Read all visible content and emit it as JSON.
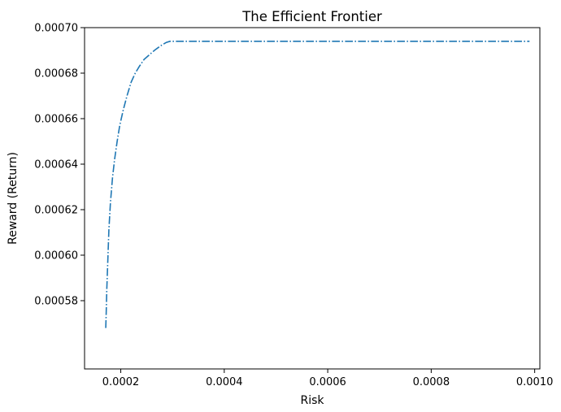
{
  "chart_data": {
    "type": "line",
    "title": "The Efficient Frontier",
    "xlabel": "Risk",
    "ylabel": "Reward (Return)",
    "xlim": [
      0.00013,
      0.00101
    ],
    "ylim": [
      0.00055,
      0.0007
    ],
    "x_ticks": [
      0.0002,
      0.0004,
      0.0006,
      0.0008,
      0.001
    ],
    "x_tick_labels": [
      "0.0002",
      "0.0004",
      "0.0006",
      "0.0008",
      "0.0010"
    ],
    "y_ticks": [
      0.00058,
      0.0006,
      0.00062,
      0.00064,
      0.00066,
      0.00068,
      0.0007
    ],
    "y_tick_labels": [
      "0.00058",
      "0.00060",
      "0.00062",
      "0.00064",
      "0.00066",
      "0.00068",
      "0.00070"
    ],
    "grid": false,
    "line_style": "dashdot",
    "color": "#1f77b4",
    "series": [
      {
        "x": [
          0.000171,
          0.000172,
          0.000173,
          0.000175,
          0.000177,
          0.00018,
          0.000184,
          0.000188,
          0.000193,
          0.000198,
          0.000205,
          0.000212,
          0.00022,
          0.000228,
          0.000236,
          0.000245,
          0.000255,
          0.000265,
          0.000277,
          0.000288,
          0.000295,
          0.00035,
          0.0004,
          0.0005,
          0.0006,
          0.0007,
          0.0008,
          0.0009,
          0.00099
        ],
        "y": [
          0.000568,
          0.000576,
          0.000585,
          0.000598,
          0.000611,
          0.000623,
          0.000634,
          0.000642,
          0.00065,
          0.000657,
          0.000664,
          0.00067,
          0.000676,
          0.00068,
          0.000683,
          0.000686,
          0.000688,
          0.00069,
          0.000692,
          0.0006935,
          0.000694,
          0.000694,
          0.000694,
          0.000694,
          0.000694,
          0.000694,
          0.000694,
          0.000694,
          0.000694
        ]
      }
    ]
  }
}
